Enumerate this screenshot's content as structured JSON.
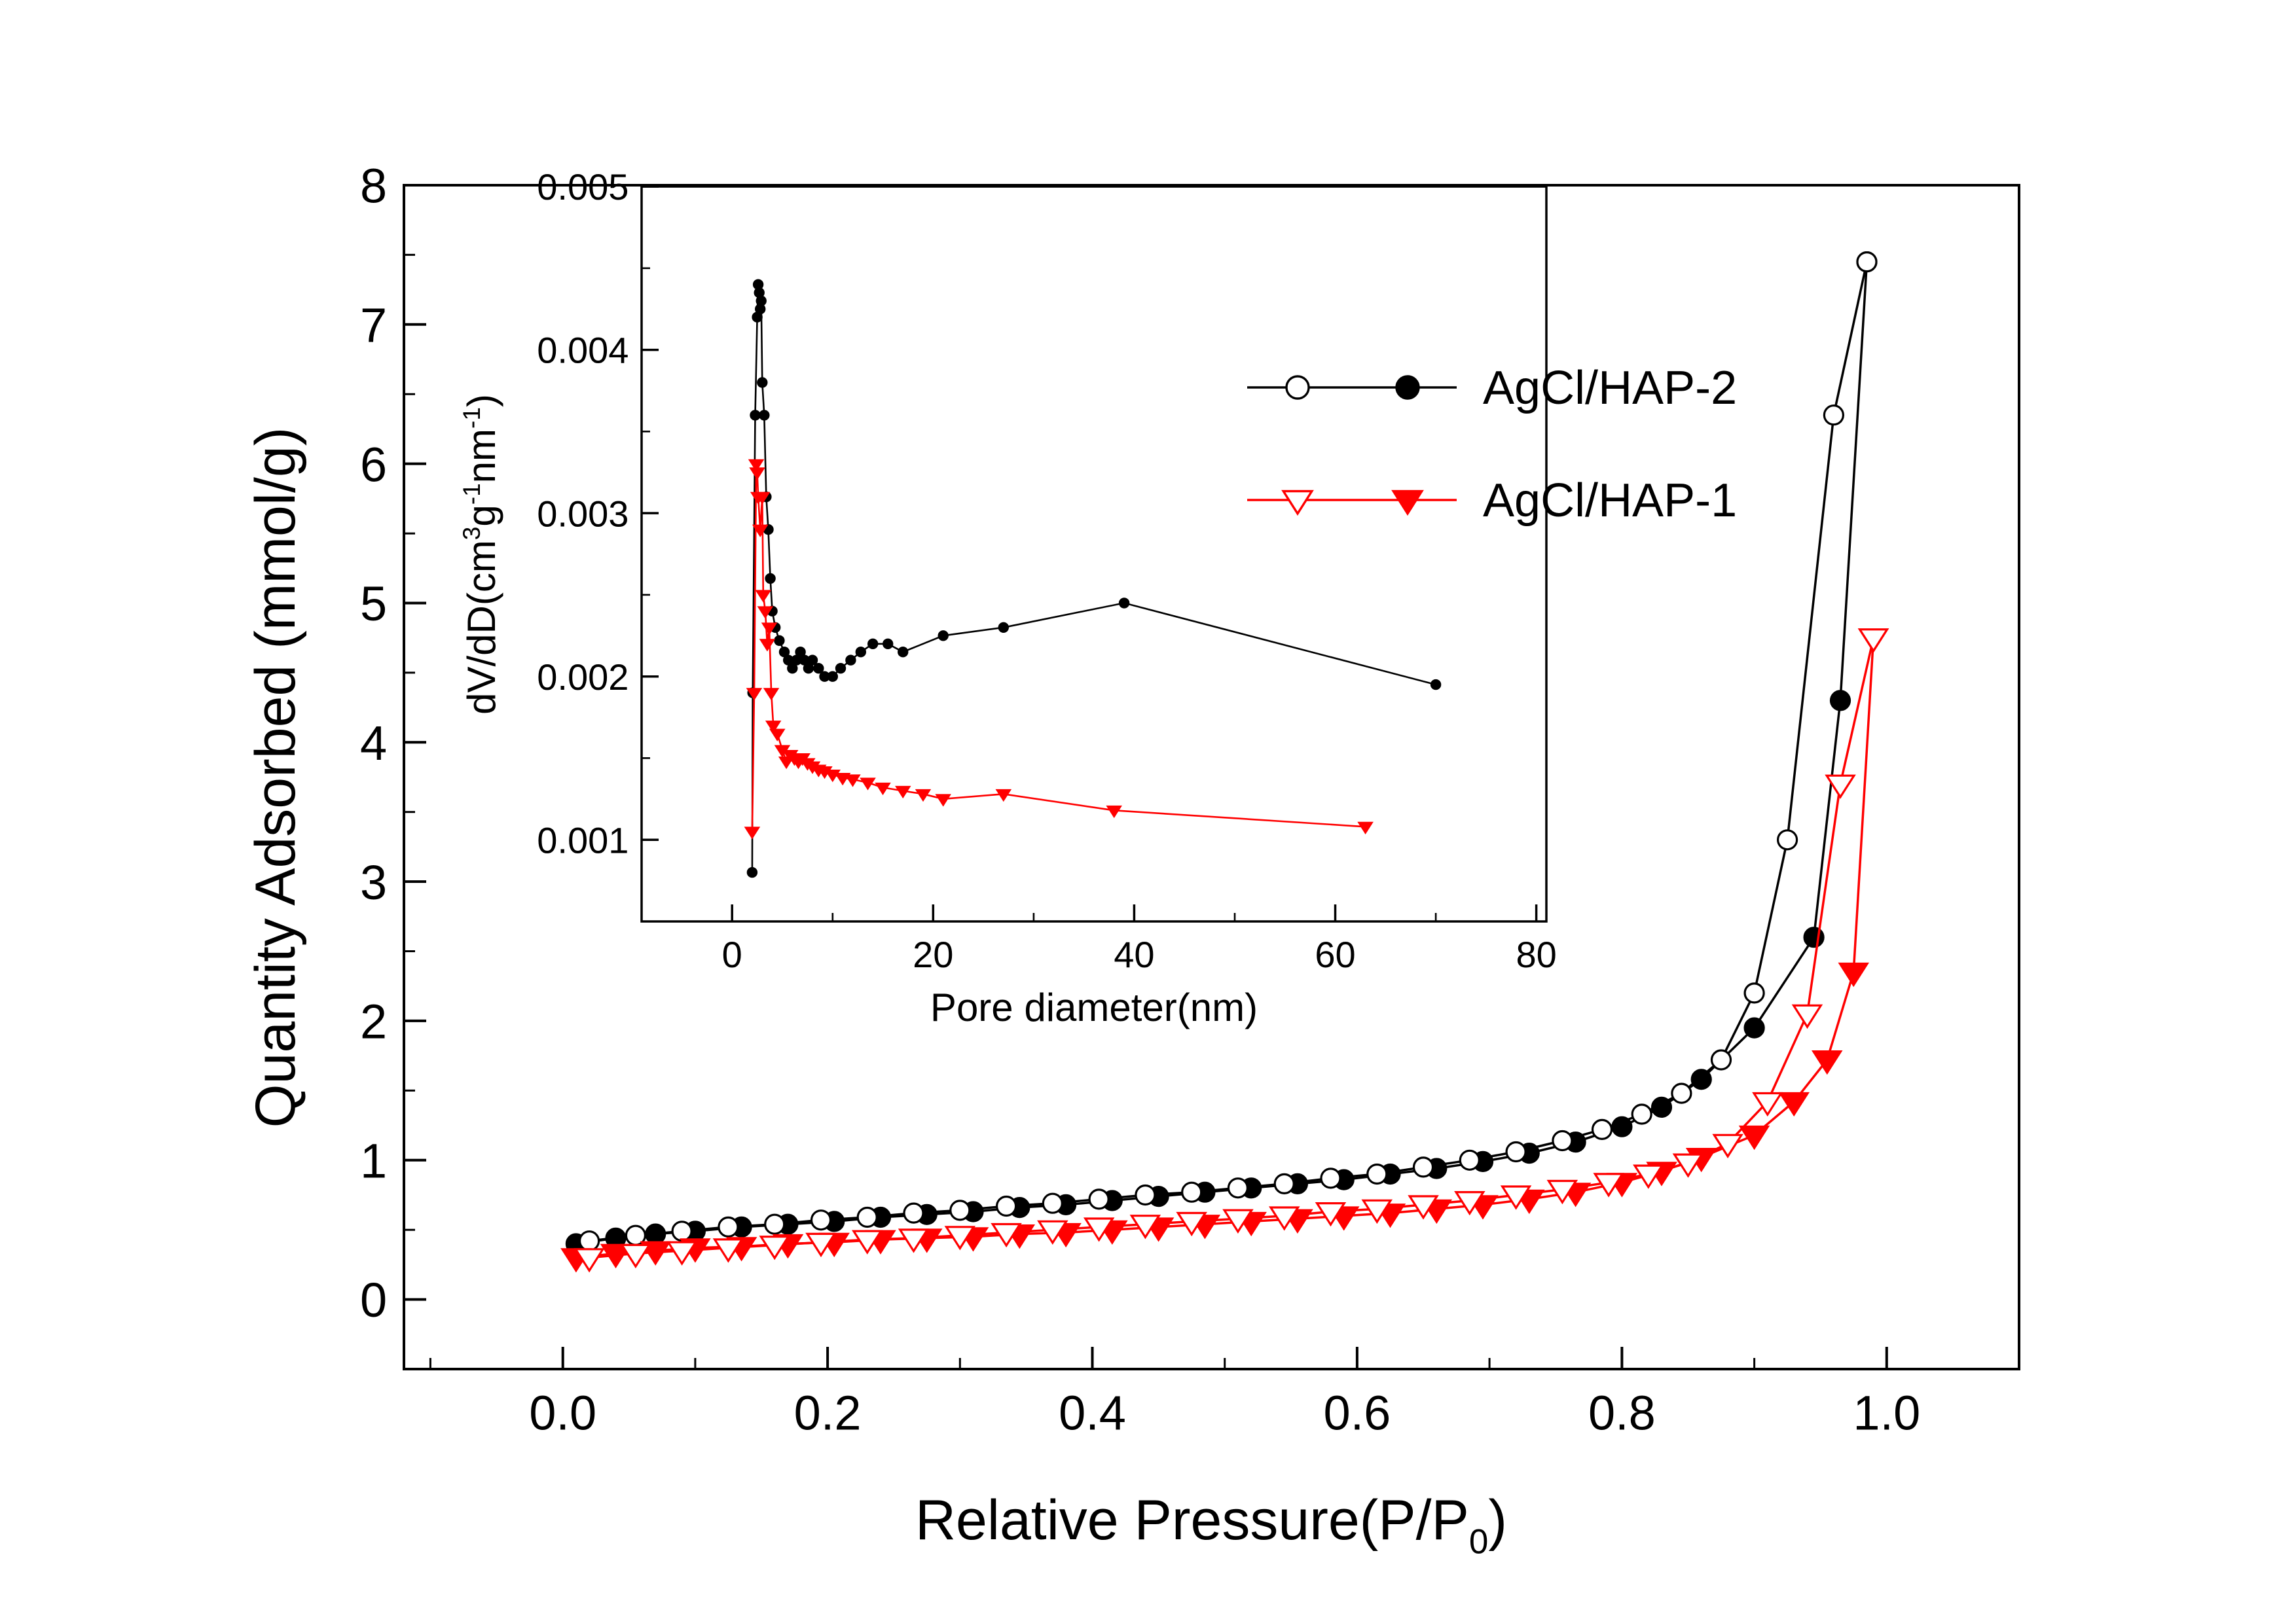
{
  "figure": {
    "background": "#ffffff",
    "title": ""
  },
  "colors": {
    "series_black": "#000000",
    "series_red": "#ff0000",
    "marker_fill_open": "#ffffff",
    "axis": "#000000"
  },
  "legend": {
    "position": "upper-middle-right",
    "entries": [
      {
        "label": "AgCl/HAP-2",
        "color": "#000000",
        "marker": "circle"
      },
      {
        "label": "AgCl/HAP-1",
        "color": "#ff0000",
        "marker": "triangle-down"
      }
    ]
  },
  "chart_data": [
    {
      "id": "main",
      "type": "line",
      "title": "",
      "ylabel": "Quantity Adsorbed (mmol/g)",
      "xlabel_segments": [
        {
          "t": "Relative Pressure(P/P"
        },
        {
          "t": "0",
          "s": "sub"
        },
        {
          "t": ")"
        }
      ],
      "xlim": [
        -0.12,
        1.1
      ],
      "ylim": [
        -0.5,
        8
      ],
      "xticks": [
        0.0,
        0.2,
        0.4,
        0.6,
        0.8,
        1.0
      ],
      "xtick_labels": [
        "0.0",
        "0.2",
        "0.4",
        "0.6",
        "0.8",
        "1.0"
      ],
      "xminor_step": 0.1,
      "yticks": [
        0,
        1,
        2,
        3,
        4,
        5,
        6,
        7,
        8
      ],
      "ytick_labels": [
        "0",
        "1",
        "2",
        "3",
        "4",
        "5",
        "6",
        "7",
        "8"
      ],
      "yminor_step": 0.5,
      "grid": false,
      "series": [
        {
          "name": "AgCl/HAP-2 adsorption",
          "color": "#000000",
          "marker": "circle-filled",
          "x": [
            0.01,
            0.04,
            0.07,
            0.1,
            0.135,
            0.17,
            0.205,
            0.24,
            0.275,
            0.31,
            0.345,
            0.38,
            0.415,
            0.45,
            0.485,
            0.52,
            0.555,
            0.59,
            0.625,
            0.66,
            0.695,
            0.73,
            0.765,
            0.8,
            0.83,
            0.86,
            0.9,
            0.945,
            0.965,
            0.985
          ],
          "y": [
            0.4,
            0.44,
            0.47,
            0.49,
            0.52,
            0.54,
            0.56,
            0.59,
            0.61,
            0.63,
            0.66,
            0.68,
            0.71,
            0.74,
            0.77,
            0.8,
            0.83,
            0.86,
            0.9,
            0.94,
            0.99,
            1.05,
            1.13,
            1.24,
            1.38,
            1.58,
            1.95,
            2.6,
            4.3,
            7.45
          ]
        },
        {
          "name": "AgCl/HAP-2 desorption",
          "color": "#000000",
          "marker": "circle-open",
          "x": [
            0.985,
            0.96,
            0.925,
            0.9,
            0.875,
            0.845,
            0.815,
            0.785,
            0.755,
            0.72,
            0.685,
            0.65,
            0.615,
            0.58,
            0.545,
            0.51,
            0.475,
            0.44,
            0.405,
            0.37,
            0.335,
            0.3,
            0.265,
            0.23,
            0.195,
            0.16,
            0.125,
            0.09,
            0.055,
            0.02
          ],
          "y": [
            7.45,
            6.35,
            3.3,
            2.2,
            1.72,
            1.48,
            1.33,
            1.22,
            1.14,
            1.06,
            1.0,
            0.95,
            0.9,
            0.87,
            0.83,
            0.8,
            0.77,
            0.75,
            0.72,
            0.69,
            0.67,
            0.64,
            0.62,
            0.59,
            0.57,
            0.54,
            0.52,
            0.49,
            0.46,
            0.42
          ]
        },
        {
          "name": "AgCl/HAP-1 adsorption",
          "color": "#ff0000",
          "marker": "triangle-filled",
          "x": [
            0.01,
            0.04,
            0.07,
            0.1,
            0.135,
            0.17,
            0.205,
            0.24,
            0.275,
            0.31,
            0.345,
            0.38,
            0.415,
            0.45,
            0.485,
            0.52,
            0.555,
            0.59,
            0.625,
            0.66,
            0.695,
            0.73,
            0.765,
            0.8,
            0.83,
            0.86,
            0.9,
            0.93,
            0.955,
            0.975,
            0.99
          ],
          "y": [
            0.3,
            0.33,
            0.35,
            0.37,
            0.38,
            0.4,
            0.41,
            0.43,
            0.44,
            0.45,
            0.47,
            0.48,
            0.5,
            0.52,
            0.54,
            0.56,
            0.58,
            0.6,
            0.62,
            0.65,
            0.68,
            0.72,
            0.77,
            0.84,
            0.92,
            1.02,
            1.18,
            1.42,
            1.72,
            2.35,
            4.75
          ]
        },
        {
          "name": "AgCl/HAP-1 desorption",
          "color": "#ff0000",
          "marker": "triangle-open",
          "x": [
            0.99,
            0.965,
            0.94,
            0.91,
            0.88,
            0.85,
            0.82,
            0.79,
            0.755,
            0.72,
            0.685,
            0.65,
            0.615,
            0.58,
            0.545,
            0.51,
            0.475,
            0.44,
            0.405,
            0.37,
            0.335,
            0.3,
            0.265,
            0.23,
            0.195,
            0.16,
            0.125,
            0.09,
            0.055,
            0.02
          ],
          "y": [
            4.75,
            3.7,
            2.05,
            1.42,
            1.12,
            0.98,
            0.9,
            0.84,
            0.79,
            0.75,
            0.71,
            0.68,
            0.65,
            0.63,
            0.6,
            0.58,
            0.56,
            0.54,
            0.52,
            0.5,
            0.48,
            0.46,
            0.44,
            0.43,
            0.41,
            0.39,
            0.37,
            0.35,
            0.33,
            0.3
          ]
        }
      ]
    },
    {
      "id": "inset",
      "type": "line",
      "title": "",
      "xlabel": "Pore diameter(nm)",
      "ylabel_segments": [
        {
          "t": "dV/dD(cm"
        },
        {
          "t": "3",
          "s": "sup"
        },
        {
          "t": "g"
        },
        {
          "t": "-1",
          "s": "sup"
        },
        {
          "t": "nm"
        },
        {
          "t": "-1",
          "s": "sup"
        },
        {
          "t": ")"
        }
      ],
      "xlim": [
        -9,
        81
      ],
      "ylim": [
        0.0005,
        0.005
      ],
      "xticks": [
        0,
        20,
        40,
        60,
        80
      ],
      "xtick_labels": [
        "0",
        "20",
        "40",
        "60",
        "80"
      ],
      "xminor_step": 10,
      "yticks": [
        0.001,
        0.002,
        0.003,
        0.004,
        0.005
      ],
      "ytick_labels": [
        "0.001",
        "0.002",
        "0.003",
        "0.004",
        "0.005"
      ],
      "yminor_step": 0.0005,
      "grid": false,
      "series": [
        {
          "name": "AgCl/HAP-2 pore size distribution",
          "color": "#000000",
          "marker": "circle-filled",
          "x": [
            2.0,
            2.05,
            2.3,
            2.5,
            2.6,
            2.7,
            2.8,
            2.9,
            3.0,
            3.2,
            3.4,
            3.6,
            3.8,
            4.0,
            4.3,
            4.7,
            5.2,
            5.6,
            6.0,
            6.4,
            6.8,
            7.2,
            7.6,
            8.0,
            8.6,
            9.2,
            10.0,
            10.8,
            11.8,
            12.8,
            14.0,
            15.5,
            17.0,
            21.0,
            27.0,
            39.0,
            70.0
          ],
          "y": [
            0.0008,
            0.0019,
            0.0036,
            0.0042,
            0.0044,
            0.00435,
            0.00425,
            0.0043,
            0.0038,
            0.0036,
            0.0031,
            0.0029,
            0.0026,
            0.0024,
            0.0023,
            0.00222,
            0.00215,
            0.0021,
            0.00205,
            0.0021,
            0.00215,
            0.0021,
            0.00205,
            0.0021,
            0.00205,
            0.002,
            0.002,
            0.00205,
            0.0021,
            0.00215,
            0.0022,
            0.0022,
            0.00215,
            0.00225,
            0.0023,
            0.00245,
            0.00195
          ]
        },
        {
          "name": "AgCl/HAP-1 pore size distribution",
          "color": "#ff0000",
          "marker": "triangle-filled",
          "x": [
            2.0,
            2.2,
            2.4,
            2.5,
            2.6,
            2.8,
            3.0,
            3.1,
            3.3,
            3.5,
            3.7,
            3.9,
            4.1,
            4.5,
            5.0,
            5.4,
            5.8,
            6.2,
            6.6,
            7.0,
            7.5,
            8.0,
            8.6,
            9.2,
            10.0,
            11.0,
            12.0,
            13.5,
            15.0,
            17.0,
            19.0,
            21.0,
            27.0,
            38.0,
            63.0
          ],
          "y": [
            0.00105,
            0.0019,
            0.0033,
            0.00325,
            0.0031,
            0.0029,
            0.0031,
            0.0025,
            0.0024,
            0.0022,
            0.0023,
            0.0019,
            0.0017,
            0.00165,
            0.00155,
            0.00148,
            0.00152,
            0.0015,
            0.00148,
            0.0015,
            0.00147,
            0.00145,
            0.00143,
            0.00142,
            0.0014,
            0.00138,
            0.00137,
            0.00135,
            0.00132,
            0.0013,
            0.00128,
            0.00125,
            0.00128,
            0.00118,
            0.00108
          ]
        }
      ]
    }
  ]
}
